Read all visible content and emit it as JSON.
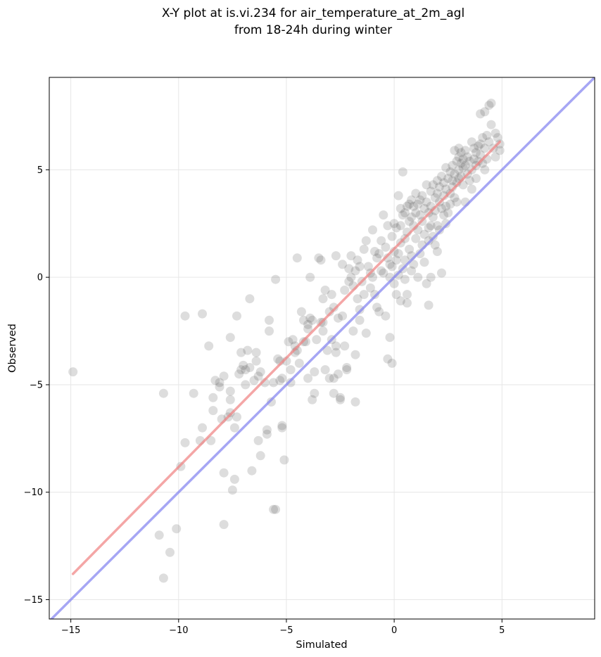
{
  "chart_data": {
    "type": "scatter",
    "title_lines": [
      "X-Y plot at is.vi.234 for air_temperature_at_2m_agl",
      "from 18-24h during winter"
    ],
    "xlabel": "Simulated",
    "ylabel": "Observed",
    "xlim": [
      -16.0,
      9.3
    ],
    "ylim": [
      -15.9,
      9.3
    ],
    "xticks": [
      -15,
      -10,
      -5,
      0,
      5
    ],
    "yticks": [
      -15,
      -10,
      -5,
      0,
      5
    ],
    "xtick_labels": [
      "−15",
      "−10",
      "−5",
      "0",
      "5"
    ],
    "ytick_labels": [
      "−15",
      "−10",
      "−5",
      "0",
      "5"
    ],
    "grid": true,
    "colors": {
      "points": "#555555",
      "fit_line": "#f08080",
      "identity_line": "#8080f0"
    },
    "fit_line": {
      "x": [
        -14.9,
        4.9
      ],
      "y": [
        -13.8,
        6.3
      ]
    },
    "identity_line": {
      "x": [
        -16.0,
        9.3
      ],
      "y": [
        -16.0,
        9.3
      ]
    },
    "series": [
      {
        "points": [
          [
            -14.9,
            -4.4
          ],
          [
            -10.7,
            -5.4
          ],
          [
            -10.7,
            -14.0
          ],
          [
            -10.9,
            -12.0
          ],
          [
            -10.4,
            -12.8
          ],
          [
            -10.1,
            -11.7
          ],
          [
            -9.9,
            -8.8
          ],
          [
            -9.7,
            -7.7
          ],
          [
            -9.7,
            -1.8
          ],
          [
            -9.3,
            -5.4
          ],
          [
            -9.0,
            -7.6
          ],
          [
            -8.9,
            -7.0
          ],
          [
            -8.9,
            -1.7
          ],
          [
            -8.5,
            -7.6
          ],
          [
            -8.4,
            -5.6
          ],
          [
            -8.6,
            -3.2
          ],
          [
            -8.4,
            -6.2
          ],
          [
            -8.3,
            -4.8
          ],
          [
            -8.1,
            -4.9
          ],
          [
            -8.1,
            -5.1
          ],
          [
            -7.9,
            -4.6
          ],
          [
            -8.0,
            -6.6
          ],
          [
            -7.9,
            -9.1
          ],
          [
            -7.9,
            -11.5
          ],
          [
            -7.7,
            -6.5
          ],
          [
            -7.6,
            -6.3
          ],
          [
            -7.6,
            -5.7
          ],
          [
            -7.6,
            -5.3
          ],
          [
            -7.6,
            -2.8
          ],
          [
            -7.5,
            -9.9
          ],
          [
            -7.4,
            -7.0
          ],
          [
            -7.4,
            -9.4
          ],
          [
            -7.3,
            -6.5
          ],
          [
            -7.3,
            -1.8
          ],
          [
            -7.2,
            -4.5
          ],
          [
            -7.1,
            -4.3
          ],
          [
            -7.1,
            -3.5
          ],
          [
            -7.0,
            -4.1
          ],
          [
            -6.9,
            -5.0
          ],
          [
            -6.9,
            -4.3
          ],
          [
            -6.8,
            -3.4
          ],
          [
            -6.7,
            -4.2
          ],
          [
            -6.7,
            -1.0
          ],
          [
            -6.6,
            -9.0
          ],
          [
            -6.5,
            -4.8
          ],
          [
            -6.4,
            -3.9
          ],
          [
            -6.4,
            -3.5
          ],
          [
            -6.3,
            -4.6
          ],
          [
            -6.3,
            -7.6
          ],
          [
            -6.2,
            -8.3
          ],
          [
            -6.2,
            -4.4
          ],
          [
            -6.0,
            -4.9
          ],
          [
            -5.9,
            -7.1
          ],
          [
            -5.9,
            -7.3
          ],
          [
            -5.8,
            -2.0
          ],
          [
            -5.8,
            -2.5
          ],
          [
            -5.7,
            -5.8
          ],
          [
            -5.6,
            -4.9
          ],
          [
            -5.6,
            -10.8
          ],
          [
            -5.5,
            -10.8
          ],
          [
            -5.5,
            -0.1
          ],
          [
            -5.4,
            -3.8
          ],
          [
            -5.3,
            -3.9
          ],
          [
            -5.3,
            -4.8
          ],
          [
            -5.2,
            -4.7
          ],
          [
            -5.2,
            -6.9
          ],
          [
            -5.2,
            -7.0
          ],
          [
            -5.1,
            -8.5
          ],
          [
            -5.0,
            -3.9
          ],
          [
            -4.9,
            -3.0
          ],
          [
            -4.8,
            -4.9
          ],
          [
            -4.8,
            -4.3
          ],
          [
            -4.7,
            -2.9
          ],
          [
            -4.6,
            -3.2
          ],
          [
            -4.6,
            -3.5
          ],
          [
            -4.5,
            -3.4
          ],
          [
            -4.5,
            0.9
          ],
          [
            -4.4,
            -4.0
          ],
          [
            -4.3,
            -1.6
          ],
          [
            -4.2,
            -3.0
          ],
          [
            -4.2,
            -2.0
          ],
          [
            -4.1,
            -3.0
          ],
          [
            -4.0,
            -2.2
          ],
          [
            -4.0,
            -2.4
          ],
          [
            -4.0,
            -4.7
          ],
          [
            -3.9,
            0.0
          ],
          [
            -3.9,
            -1.9
          ],
          [
            -3.8,
            -5.7
          ],
          [
            -3.8,
            -2.0
          ],
          [
            -3.7,
            -5.4
          ],
          [
            -3.7,
            -4.4
          ],
          [
            -3.6,
            -2.9
          ],
          [
            -3.5,
            0.9
          ],
          [
            -3.4,
            0.8
          ],
          [
            -3.4,
            -2.1
          ],
          [
            -3.3,
            -2.5
          ],
          [
            -3.3,
            -2.1
          ],
          [
            -3.3,
            -1.0
          ],
          [
            -3.2,
            -0.6
          ],
          [
            -3.2,
            -4.3
          ],
          [
            -3.1,
            -3.4
          ],
          [
            -3.0,
            -4.7
          ],
          [
            -3.0,
            -1.6
          ],
          [
            -2.9,
            -2.9
          ],
          [
            -2.9,
            -0.8
          ],
          [
            -2.8,
            -5.4
          ],
          [
            -2.8,
            -4.7
          ],
          [
            -2.8,
            -1.4
          ],
          [
            -2.7,
            1.0
          ],
          [
            -2.7,
            -3.2
          ],
          [
            -2.7,
            -3.5
          ],
          [
            -2.6,
            -4.5
          ],
          [
            -2.6,
            -1.9
          ],
          [
            -2.5,
            -5.6
          ],
          [
            -2.5,
            -5.7
          ],
          [
            -2.4,
            -1.8
          ],
          [
            -2.4,
            0.6
          ],
          [
            -2.3,
            -0.6
          ],
          [
            -2.3,
            -3.2
          ],
          [
            -2.2,
            -4.2
          ],
          [
            -2.2,
            -4.3
          ],
          [
            -2.1,
            -0.2
          ],
          [
            -2.1,
            0.4
          ],
          [
            -2.0,
            0.0
          ],
          [
            -2.0,
            1.0
          ],
          [
            -1.9,
            -0.4
          ],
          [
            -1.9,
            -2.5
          ],
          [
            -1.8,
            -5.8
          ],
          [
            -1.8,
            -3.6
          ],
          [
            -1.8,
            0.3
          ],
          [
            -1.7,
            -1.0
          ],
          [
            -1.7,
            0.8
          ],
          [
            -1.6,
            -1.5
          ],
          [
            -1.6,
            -2.0
          ],
          [
            -1.6,
            0.5
          ],
          [
            -1.5,
            -0.2
          ],
          [
            -1.4,
            1.3
          ],
          [
            -1.4,
            -0.8
          ],
          [
            -1.3,
            -2.6
          ],
          [
            -1.3,
            1.7
          ],
          [
            -1.2,
            0.5
          ],
          [
            -1.1,
            0.2
          ],
          [
            -1.1,
            -0.5
          ],
          [
            -1.0,
            0.0
          ],
          [
            -1.0,
            2.2
          ],
          [
            -0.9,
            -0.8
          ],
          [
            -0.9,
            1.2
          ],
          [
            -0.8,
            0.9
          ],
          [
            -0.8,
            -1.4
          ],
          [
            -0.7,
            1.1
          ],
          [
            -0.7,
            -1.6
          ],
          [
            -0.6,
            1.7
          ],
          [
            -0.6,
            0.3
          ],
          [
            -0.5,
            2.9
          ],
          [
            -0.5,
            0.2
          ],
          [
            -0.4,
            -1.8
          ],
          [
            -0.4,
            1.4
          ],
          [
            -0.3,
            -3.8
          ],
          [
            -0.3,
            0.9
          ],
          [
            -0.3,
            2.4
          ],
          [
            -0.2,
            0.0
          ],
          [
            -0.2,
            0.6
          ],
          [
            -0.2,
            -2.8
          ],
          [
            -0.1,
            1.9
          ],
          [
            -0.1,
            0.5
          ],
          [
            -0.1,
            -4.0
          ],
          [
            0.0,
            2.5
          ],
          [
            0.0,
            1.2
          ],
          [
            0.0,
            -0.3
          ],
          [
            0.1,
            2.3
          ],
          [
            0.1,
            0.8
          ],
          [
            0.1,
            -0.8
          ],
          [
            0.2,
            3.8
          ],
          [
            0.2,
            1.1
          ],
          [
            0.2,
            0.1
          ],
          [
            0.3,
            3.2
          ],
          [
            0.3,
            2.4
          ],
          [
            0.3,
            1.6
          ],
          [
            0.3,
            -1.1
          ],
          [
            0.4,
            4.9
          ],
          [
            0.4,
            2.9
          ],
          [
            0.4,
            0.4
          ],
          [
            0.5,
            3.0
          ],
          [
            0.5,
            1.8
          ],
          [
            0.5,
            0.8
          ],
          [
            0.5,
            -0.1
          ],
          [
            0.6,
            3.3
          ],
          [
            0.6,
            2.1
          ],
          [
            0.6,
            -0.8
          ],
          [
            0.6,
            -1.2
          ],
          [
            0.7,
            3.4
          ],
          [
            0.7,
            2.6
          ],
          [
            0.7,
            1.3
          ],
          [
            0.8,
            3.6
          ],
          [
            0.8,
            2.8
          ],
          [
            0.8,
            1.0
          ],
          [
            0.8,
            0.3
          ],
          [
            0.9,
            3.3
          ],
          [
            0.9,
            2.4
          ],
          [
            0.9,
            0.6
          ],
          [
            1.0,
            3.9
          ],
          [
            1.0,
            3.0
          ],
          [
            1.0,
            1.8
          ],
          [
            1.1,
            3.4
          ],
          [
            1.1,
            2.2
          ],
          [
            1.1,
            0.0
          ],
          [
            1.2,
            3.6
          ],
          [
            1.2,
            2.9
          ],
          [
            1.2,
            1.1
          ],
          [
            1.3,
            3.8
          ],
          [
            1.3,
            2.6
          ],
          [
            1.3,
            1.5
          ],
          [
            1.4,
            3.2
          ],
          [
            1.4,
            2.0
          ],
          [
            1.4,
            0.7
          ],
          [
            1.5,
            4.3
          ],
          [
            1.5,
            3.5
          ],
          [
            1.5,
            -0.3
          ],
          [
            1.6,
            3.0
          ],
          [
            1.6,
            2.3
          ],
          [
            1.6,
            1.7
          ],
          [
            1.6,
            -1.3
          ],
          [
            1.7,
            4.0
          ],
          [
            1.7,
            3.3
          ],
          [
            1.7,
            2.4
          ],
          [
            1.7,
            0.0
          ],
          [
            1.8,
            4.3
          ],
          [
            1.8,
            2.8
          ],
          [
            1.8,
            1.9
          ],
          [
            1.9,
            3.7
          ],
          [
            1.9,
            3.1
          ],
          [
            1.9,
            1.5
          ],
          [
            2.0,
            4.5
          ],
          [
            2.0,
            3.9
          ],
          [
            2.0,
            2.4
          ],
          [
            2.0,
            1.2
          ],
          [
            2.1,
            4.2
          ],
          [
            2.1,
            3.5
          ],
          [
            2.1,
            2.2
          ],
          [
            2.2,
            4.7
          ],
          [
            2.2,
            3.2
          ],
          [
            2.2,
            0.2
          ],
          [
            2.3,
            4.4
          ],
          [
            2.3,
            3.8
          ],
          [
            2.3,
            2.9
          ],
          [
            2.4,
            5.1
          ],
          [
            2.4,
            4.1
          ],
          [
            2.4,
            3.3
          ],
          [
            2.4,
            2.5
          ],
          [
            2.5,
            4.6
          ],
          [
            2.5,
            3.0
          ],
          [
            2.6,
            4.9
          ],
          [
            2.6,
            3.9
          ],
          [
            2.6,
            3.4
          ],
          [
            2.7,
            5.2
          ],
          [
            2.7,
            4.5
          ],
          [
            2.7,
            4.2
          ],
          [
            2.8,
            5.9
          ],
          [
            2.8,
            4.8
          ],
          [
            2.8,
            3.7
          ],
          [
            2.9,
            5.4
          ],
          [
            2.9,
            4.4
          ],
          [
            2.9,
            3.5
          ],
          [
            3.0,
            6.0
          ],
          [
            3.0,
            5.6
          ],
          [
            3.0,
            5.0
          ],
          [
            3.0,
            4.6
          ],
          [
            3.1,
            5.8
          ],
          [
            3.1,
            5.3
          ],
          [
            3.1,
            4.7
          ],
          [
            3.2,
            5.5
          ],
          [
            3.2,
            5.1
          ],
          [
            3.2,
            4.3
          ],
          [
            3.3,
            5.9
          ],
          [
            3.3,
            5.2
          ],
          [
            3.3,
            3.5
          ],
          [
            3.4,
            5.6
          ],
          [
            3.4,
            4.8
          ],
          [
            3.5,
            5.4
          ],
          [
            3.5,
            4.5
          ],
          [
            3.6,
            6.3
          ],
          [
            3.6,
            5.0
          ],
          [
            3.6,
            4.1
          ],
          [
            3.7,
            6.0
          ],
          [
            3.7,
            5.5
          ],
          [
            3.8,
            5.8
          ],
          [
            3.8,
            5.2
          ],
          [
            3.8,
            4.6
          ],
          [
            3.9,
            6.1
          ],
          [
            3.9,
            5.4
          ],
          [
            4.0,
            7.6
          ],
          [
            4.0,
            6.2
          ],
          [
            4.0,
            5.7
          ],
          [
            4.1,
            6.5
          ],
          [
            4.1,
            5.3
          ],
          [
            4.2,
            7.7
          ],
          [
            4.2,
            6.0
          ],
          [
            4.2,
            5.0
          ],
          [
            4.3,
            6.6
          ],
          [
            4.3,
            5.5
          ],
          [
            4.4,
            8.0
          ],
          [
            4.4,
            6.3
          ],
          [
            4.5,
            8.1
          ],
          [
            4.5,
            7.1
          ],
          [
            4.6,
            6.0
          ],
          [
            4.7,
            6.7
          ],
          [
            4.7,
            5.6
          ],
          [
            4.8,
            6.5
          ],
          [
            4.9,
            6.2
          ],
          [
            4.9,
            5.9
          ]
        ]
      }
    ]
  }
}
